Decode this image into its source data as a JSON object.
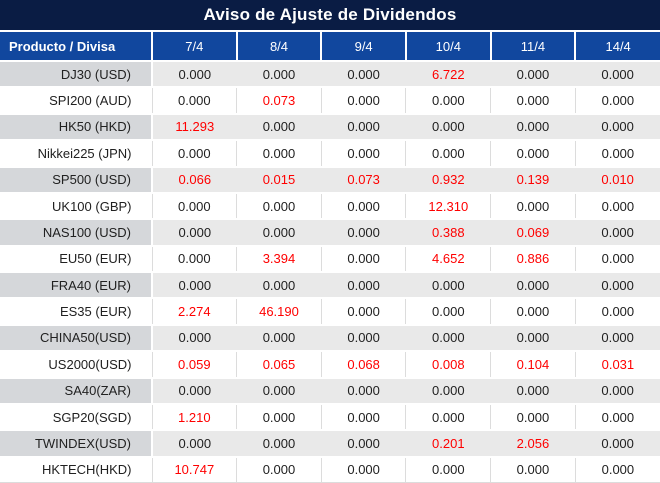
{
  "title": "Aviso de Ajuste de Dividendos",
  "table": {
    "product_header": "Producto / Divisa",
    "date_headers": [
      "7/4",
      "8/4",
      "9/4",
      "10/4",
      "11/4",
      "14/4"
    ],
    "rows": [
      {
        "product": "DJ30 (USD)",
        "values": [
          "0.000",
          "0.000",
          "0.000",
          "6.722",
          "0.000",
          "0.000"
        ],
        "red_cells": [
          3
        ]
      },
      {
        "product": "SPI200 (AUD)",
        "values": [
          "0.000",
          "0.073",
          "0.000",
          "0.000",
          "0.000",
          "0.000"
        ],
        "red_cells": [
          1
        ]
      },
      {
        "product": "HK50 (HKD)",
        "values": [
          "11.293",
          "0.000",
          "0.000",
          "0.000",
          "0.000",
          "0.000"
        ],
        "red_cells": [
          0
        ]
      },
      {
        "product": "Nikkei225 (JPN)",
        "values": [
          "0.000",
          "0.000",
          "0.000",
          "0.000",
          "0.000",
          "0.000"
        ],
        "red_cells": []
      },
      {
        "product": "SP500 (USD)",
        "values": [
          "0.066",
          "0.015",
          "0.073",
          "0.932",
          "0.139",
          "0.010"
        ],
        "red_cells": [
          0,
          1,
          2,
          3,
          4,
          5
        ]
      },
      {
        "product": "UK100 (GBP)",
        "values": [
          "0.000",
          "0.000",
          "0.000",
          "12.310",
          "0.000",
          "0.000"
        ],
        "red_cells": [
          3
        ]
      },
      {
        "product": "NAS100 (USD)",
        "values": [
          "0.000",
          "0.000",
          "0.000",
          "0.388",
          "0.069",
          "0.000"
        ],
        "red_cells": [
          3,
          4
        ]
      },
      {
        "product": "EU50 (EUR)",
        "values": [
          "0.000",
          "3.394",
          "0.000",
          "4.652",
          "0.886",
          "0.000"
        ],
        "red_cells": [
          1,
          3,
          4
        ]
      },
      {
        "product": "FRA40 (EUR)",
        "values": [
          "0.000",
          "0.000",
          "0.000",
          "0.000",
          "0.000",
          "0.000"
        ],
        "red_cells": []
      },
      {
        "product": "ES35 (EUR)",
        "values": [
          "2.274",
          "46.190",
          "0.000",
          "0.000",
          "0.000",
          "0.000"
        ],
        "red_cells": [
          0,
          1
        ]
      },
      {
        "product": "CHINA50(USD)",
        "values": [
          "0.000",
          "0.000",
          "0.000",
          "0.000",
          "0.000",
          "0.000"
        ],
        "red_cells": []
      },
      {
        "product": "US2000(USD)",
        "values": [
          "0.059",
          "0.065",
          "0.068",
          "0.008",
          "0.104",
          "0.031"
        ],
        "red_cells": [
          0,
          1,
          2,
          3,
          4,
          5
        ]
      },
      {
        "product": "SA40(ZAR)",
        "values": [
          "0.000",
          "0.000",
          "0.000",
          "0.000",
          "0.000",
          "0.000"
        ],
        "red_cells": []
      },
      {
        "product": "SGP20(SGD)",
        "values": [
          "1.210",
          "0.000",
          "0.000",
          "0.000",
          "0.000",
          "0.000"
        ],
        "red_cells": [
          0
        ]
      },
      {
        "product": "TWINDEX(USD)",
        "values": [
          "0.000",
          "0.000",
          "0.000",
          "0.201",
          "2.056",
          "0.000"
        ],
        "red_cells": [
          3,
          4
        ]
      },
      {
        "product": "HKTECH(HKD)",
        "values": [
          "10.747",
          "0.000",
          "0.000",
          "0.000",
          "0.000",
          "0.000"
        ],
        "red_cells": [
          0
        ]
      }
    ]
  },
  "colors": {
    "title_bar_bg": "#0a1c44",
    "header_bg": "#11479e",
    "highlight_red": "#ff0000",
    "alt_row_bg": "#e9e9e9",
    "alt_product_bg": "#d5d7da",
    "text": "#212121",
    "border_light": "#dcdcdc"
  }
}
